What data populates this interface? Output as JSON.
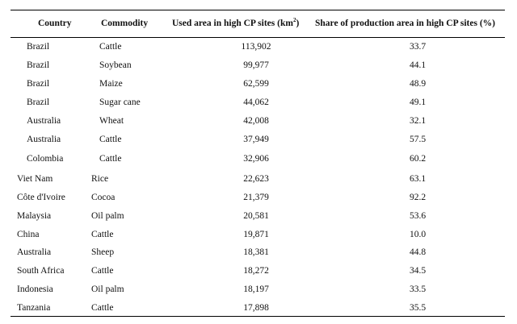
{
  "table": {
    "headers": {
      "country": "Country",
      "commodity": "Commodity",
      "area": "Used area in high CP sites (km",
      "area_sup": "2",
      "area_close": ")",
      "share": "Share of production area in high CP sites (%)"
    },
    "rows": [
      {
        "country": "Brazil",
        "commodity": "Cattle",
        "area": "113,902",
        "share": "33.7"
      },
      {
        "country": "Brazil",
        "commodity": "Soybean",
        "area": "99,977",
        "share": "44.1"
      },
      {
        "country": "Brazil",
        "commodity": "Maize",
        "area": "62,599",
        "share": "48.9"
      },
      {
        "country": "Brazil",
        "commodity": "Sugar cane",
        "area": "44,062",
        "share": "49.1"
      },
      {
        "country": "Australia",
        "commodity": "Wheat",
        "area": "42,008",
        "share": "32.1"
      },
      {
        "country": "Australia",
        "commodity": "Cattle",
        "area": "37,949",
        "share": "57.5"
      },
      {
        "country": "Colombia",
        "commodity": "Cattle",
        "area": "32,906",
        "share": "60.2"
      },
      {
        "country": "Viet Nam",
        "commodity": "Rice",
        "area": "22,623",
        "share": "63.1"
      },
      {
        "country": "Côte d'Ivoire",
        "commodity": "Cocoa",
        "area": "21,379",
        "share": "92.2"
      },
      {
        "country": "Malaysia",
        "commodity": "Oil palm",
        "area": "20,581",
        "share": "53.6"
      },
      {
        "country": "China",
        "commodity": "Cattle",
        "area": "19,871",
        "share": "10.0"
      },
      {
        "country": "Australia",
        "commodity": "Sheep",
        "area": "18,381",
        "share": "44.8"
      },
      {
        "country": "South Africa",
        "commodity": "Cattle",
        "area": "18,272",
        "share": "34.5"
      },
      {
        "country": "Indonesia",
        "commodity": "Oil palm",
        "area": "18,197",
        "share": "33.5"
      },
      {
        "country": "Tanzania",
        "commodity": "Cattle",
        "area": "17,898",
        "share": "35.5"
      }
    ]
  }
}
